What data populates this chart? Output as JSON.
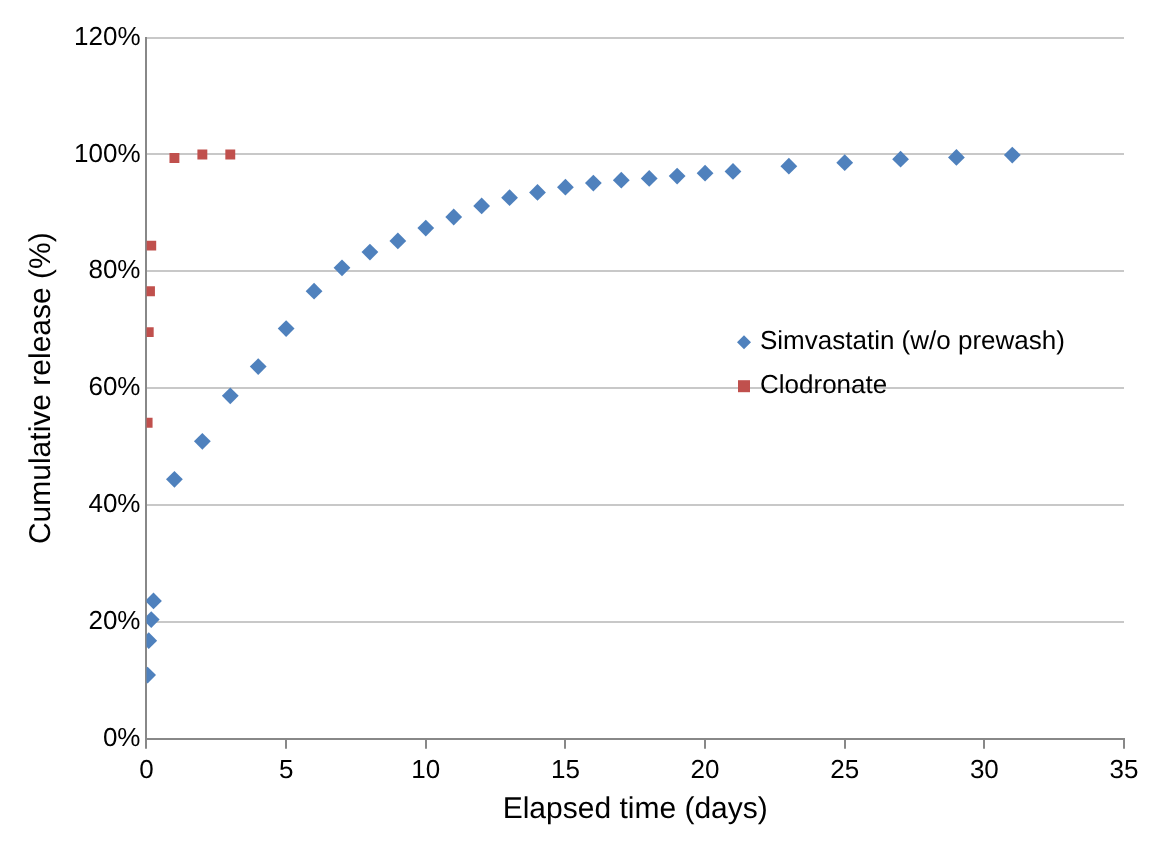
{
  "chart_data": {
    "type": "scatter",
    "xlabel": "Elapsed time (days)",
    "ylabel": "Cumulative release (%)",
    "xlim": [
      0,
      35
    ],
    "xticks": [
      0,
      5,
      10,
      15,
      20,
      25,
      30,
      35
    ],
    "ylim": [
      0,
      120
    ],
    "yticks": [
      {
        "value": 0,
        "label": "0%"
      },
      {
        "value": 20,
        "label": "20%"
      },
      {
        "value": 40,
        "label": "40%"
      },
      {
        "value": 60,
        "label": "60%"
      },
      {
        "value": 80,
        "label": "80%"
      },
      {
        "value": 100,
        "label": "100%"
      },
      {
        "value": 120,
        "label": "120%"
      }
    ],
    "grid": "y",
    "legend": "right",
    "series": [
      {
        "name": "Simvastatin (w/o prewash)",
        "color": "#4f81bd",
        "marker": "diamond",
        "x": [
          0.04,
          0.08,
          0.17,
          0.25,
          1,
          2,
          3,
          4,
          5,
          6,
          7,
          8,
          9,
          10,
          11,
          12,
          13,
          14,
          15,
          16,
          17,
          18,
          19,
          20,
          21,
          23,
          25,
          27,
          29,
          31
        ],
        "values": [
          10.9,
          16.8,
          20.4,
          23.6,
          44.4,
          50.9,
          58.7,
          63.7,
          70.2,
          76.6,
          80.6,
          83.3,
          85.2,
          87.4,
          89.3,
          91.2,
          92.6,
          93.5,
          94.4,
          95.1,
          95.6,
          95.9,
          96.3,
          96.8,
          97.1,
          98.0,
          98.6,
          99.2,
          99.5,
          99.9
        ]
      },
      {
        "name": "Clodronate",
        "color": "#c0504d",
        "marker": "square",
        "x": [
          0.04,
          0.08,
          0.125,
          0.17,
          1,
          2,
          3
        ],
        "values": [
          54.1,
          69.6,
          76.6,
          84.4,
          99.4,
          100,
          100
        ]
      }
    ]
  }
}
